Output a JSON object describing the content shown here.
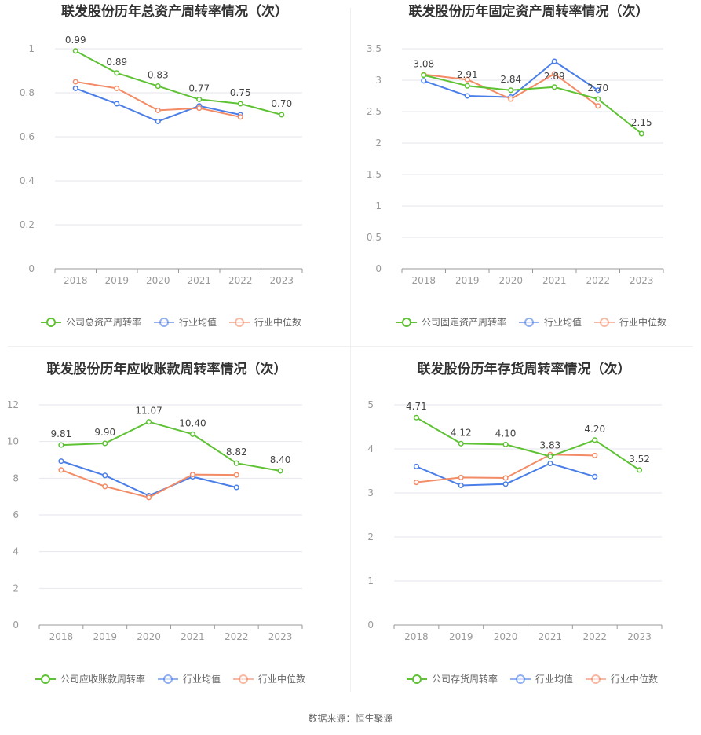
{
  "source": "数据来源：恒生聚源",
  "legend": [
    "行业均值",
    "行业中位数"
  ],
  "colors": {
    "company": "#5ec234",
    "avg": "#4a7ee8",
    "median": "#f28b66"
  },
  "chart_data": [
    {
      "type": "line",
      "title": "联发股份历年总资产周转率情况（次）",
      "categories": [
        "2018",
        "2019",
        "2020",
        "2021",
        "2022",
        "2023"
      ],
      "ylim": [
        0,
        1
      ],
      "yticks": [
        0,
        0.2,
        0.4,
        0.6,
        0.8,
        1
      ],
      "ytick_labels": [
        "0",
        "0.2",
        "0.4",
        "0.6",
        "0.8",
        "1"
      ],
      "series": [
        {
          "name": "公司总资产周转率",
          "values": [
            0.99,
            0.89,
            0.83,
            0.77,
            0.75,
            0.7
          ],
          "labels": [
            "0.99",
            "0.89",
            "0.83",
            "0.77",
            "0.75",
            "0.70"
          ]
        },
        {
          "name": "行业均值",
          "values": [
            0.82,
            0.75,
            0.67,
            0.74,
            0.7,
            null
          ]
        },
        {
          "name": "行业中位数",
          "values": [
            0.85,
            0.82,
            0.72,
            0.73,
            0.69,
            null
          ]
        }
      ]
    },
    {
      "type": "line",
      "title": "联发股份历年固定资产周转率情况（次）",
      "categories": [
        "2018",
        "2019",
        "2020",
        "2021",
        "2022",
        "2023"
      ],
      "ylim": [
        0,
        3.5
      ],
      "yticks": [
        0,
        0.5,
        1,
        1.5,
        2,
        2.5,
        3,
        3.5
      ],
      "ytick_labels": [
        "0",
        "0.5",
        "1",
        "1.5",
        "2",
        "2.5",
        "3",
        "3.5"
      ],
      "series": [
        {
          "name": "公司固定资产周转率",
          "values": [
            3.08,
            2.91,
            2.84,
            2.89,
            2.7,
            2.15
          ],
          "labels": [
            "3.08",
            "2.91",
            "2.84",
            "2.89",
            "2.70",
            "2.15"
          ]
        },
        {
          "name": "行业均值",
          "values": [
            2.99,
            2.75,
            2.73,
            3.3,
            2.84,
            null
          ]
        },
        {
          "name": "行业中位数",
          "values": [
            3.09,
            3.01,
            2.7,
            3.1,
            2.59,
            null
          ]
        }
      ]
    },
    {
      "type": "line",
      "title": "联发股份历年应收账款周转率情况（次）",
      "categories": [
        "2018",
        "2019",
        "2020",
        "2021",
        "2022",
        "2023"
      ],
      "ylim": [
        0,
        12
      ],
      "yticks": [
        0,
        2,
        4,
        6,
        8,
        10,
        12
      ],
      "ytick_labels": [
        "0",
        "2",
        "4",
        "6",
        "8",
        "10",
        "12"
      ],
      "series": [
        {
          "name": "公司应收账款周转率",
          "values": [
            9.81,
            9.9,
            11.07,
            10.4,
            8.82,
            8.4
          ],
          "labels": [
            "9.81",
            "9.90",
            "11.07",
            "10.40",
            "8.82",
            "8.40"
          ]
        },
        {
          "name": "行业均值",
          "values": [
            8.93,
            8.15,
            7.05,
            8.08,
            7.5,
            null
          ]
        },
        {
          "name": "行业中位数",
          "values": [
            8.45,
            7.55,
            6.95,
            8.2,
            8.18,
            null
          ]
        }
      ]
    },
    {
      "type": "line",
      "title": "联发股份历年存货周转率情况（次）",
      "categories": [
        "2018",
        "2019",
        "2020",
        "2021",
        "2022",
        "2023"
      ],
      "ylim": [
        0,
        5
      ],
      "yticks": [
        0,
        1,
        2,
        3,
        4,
        5
      ],
      "ytick_labels": [
        "0",
        "1",
        "2",
        "3",
        "4",
        "5"
      ],
      "series": [
        {
          "name": "公司存货周转率",
          "values": [
            4.71,
            4.12,
            4.1,
            3.83,
            4.2,
            3.52
          ],
          "labels": [
            "4.71",
            "4.12",
            "4.10",
            "3.83",
            "4.20",
            "3.52"
          ]
        },
        {
          "name": "行业均值",
          "values": [
            3.6,
            3.17,
            3.2,
            3.67,
            3.37,
            null
          ]
        },
        {
          "name": "行业中位数",
          "values": [
            3.24,
            3.35,
            3.34,
            3.87,
            3.85,
            null
          ]
        }
      ]
    }
  ]
}
